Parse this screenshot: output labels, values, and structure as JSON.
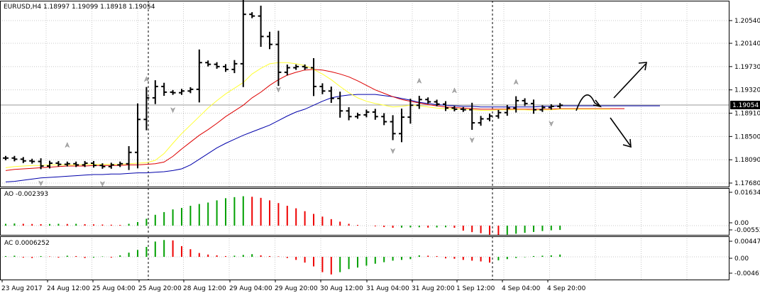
{
  "colors": {
    "background": "#ffffff",
    "grid": "#c8c8c8",
    "ma_fast": "#ffff33",
    "ma_mid": "#dd0000",
    "ma_slow": "#0000aa",
    "price_line": "#9a9a9a",
    "ao_up": "#00a000",
    "ao_down": "#ee0000"
  },
  "chart_data": [
    {
      "type": "line",
      "subtype": "ohlc-bars",
      "title": "EURUSD,H4  1.18997 1.19099 1.18918 1.19054",
      "current_price_label": "1.19054",
      "ylim": [
        1.1768,
        1.2089
      ],
      "y_ticks": [
        "1.20540",
        "1.20140",
        "1.19730",
        "1.19320",
        "1.18910",
        "1.18500",
        "1.18090",
        "1.17680"
      ],
      "x_ticks": [
        "23 Aug 2017",
        "24 Aug 12:00",
        "25 Aug 04:00",
        "25 Aug 20:00",
        "28 Aug 12:00",
        "29 Aug 04:00",
        "29 Aug 20:00",
        "30 Aug 12:00",
        "31 Aug 04:00",
        "31 Aug 20:00",
        "1 Sep 12:00",
        "4 Sep 04:00",
        "4 Sep 20:00"
      ],
      "close": [
        1.1812,
        1.181,
        1.1807,
        1.1806,
        1.1798,
        1.1803,
        1.1801,
        1.1802,
        1.18,
        1.1803,
        1.1799,
        1.1797,
        1.18,
        1.1802,
        1.1822,
        1.188,
        1.1918,
        1.1938,
        1.1928,
        1.1927,
        1.193,
        1.1933,
        1.198,
        1.1977,
        1.1973,
        1.1968,
        1.1978,
        1.2065,
        1.2062,
        1.2026,
        1.2012,
        1.1963,
        1.1971,
        1.1973,
        1.1971,
        1.1938,
        1.193,
        1.1917,
        1.1895,
        1.1885,
        1.1888,
        1.1893,
        1.1885,
        1.1876,
        1.1855,
        1.1884,
        1.1905,
        1.1915,
        1.1911,
        1.1907,
        1.19,
        1.1898,
        1.1897,
        1.1874,
        1.1881,
        1.1886,
        1.1892,
        1.19,
        1.1913,
        1.1908,
        1.1897,
        1.1901,
        1.1903,
        1.1905
      ],
      "ma_fast": [
        1.1795,
        1.1797,
        1.1798,
        1.1799,
        1.1799,
        1.18,
        1.18,
        1.18,
        1.18,
        1.1801,
        1.1801,
        1.1801,
        1.1801,
        1.1801,
        1.1802,
        1.1803,
        1.1804,
        1.1808,
        1.182,
        1.1838,
        1.1855,
        1.187,
        1.1885,
        1.19,
        1.1913,
        1.1925,
        1.1935,
        1.1945,
        1.196,
        1.197,
        1.1978,
        1.198,
        1.198,
        1.1978,
        1.1975,
        1.1968,
        1.196,
        1.195,
        1.1938,
        1.1927,
        1.1918,
        1.1912,
        1.1908,
        1.1905,
        1.1902,
        1.1903,
        1.1905,
        1.1904,
        1.1902,
        1.19,
        1.1899,
        1.1898,
        1.1898,
        1.1897,
        1.1896,
        1.1896,
        1.1897,
        1.1897,
        1.1897,
        1.1897,
        1.1896,
        1.1897,
        1.1897,
        1.1898
      ],
      "ma_mid": [
        1.179,
        1.1792,
        1.1793,
        1.1794,
        1.1795,
        1.1796,
        1.1797,
        1.1798,
        1.1798,
        1.1798,
        1.1799,
        1.1799,
        1.1799,
        1.1799,
        1.18,
        1.18,
        1.1801,
        1.1802,
        1.1805,
        1.1815,
        1.1828,
        1.184,
        1.1852,
        1.1862,
        1.1873,
        1.1885,
        1.1895,
        1.1905,
        1.1918,
        1.1928,
        1.194,
        1.195,
        1.1958,
        1.1963,
        1.1967,
        1.1968,
        1.1967,
        1.1964,
        1.196,
        1.1955,
        1.1948,
        1.194,
        1.1932,
        1.1926,
        1.192,
        1.1915,
        1.1912,
        1.1909,
        1.1906,
        1.1904,
        1.1902,
        1.1901,
        1.19,
        1.1899,
        1.1898,
        1.1898,
        1.1898,
        1.1898,
        1.1898,
        1.1898,
        1.1898,
        1.1898,
        1.1898,
        1.1899
      ],
      "ma_slow": [
        1.177,
        1.1771,
        1.1773,
        1.1775,
        1.1777,
        1.1778,
        1.1779,
        1.178,
        1.1781,
        1.1782,
        1.1783,
        1.1783,
        1.1784,
        1.1784,
        1.1785,
        1.1786,
        1.1786,
        1.1787,
        1.1788,
        1.179,
        1.1793,
        1.18,
        1.181,
        1.182,
        1.183,
        1.1838,
        1.1845,
        1.1852,
        1.1858,
        1.1864,
        1.187,
        1.1878,
        1.1886,
        1.1893,
        1.1898,
        1.1905,
        1.1912,
        1.1918,
        1.1921,
        1.1923,
        1.1924,
        1.1924,
        1.1924,
        1.1922,
        1.192,
        1.1917,
        1.1914,
        1.191,
        1.1908,
        1.1906,
        1.1905,
        1.1904,
        1.1903,
        1.1903,
        1.1902,
        1.1902,
        1.1902,
        1.1902,
        1.1902,
        1.1902,
        1.1902,
        1.1903,
        1.1903,
        1.1904
      ]
    },
    {
      "type": "bar",
      "title": "AO -0.002393",
      "y_ticks": [
        "0.016345",
        "0.00",
        "-0.005526"
      ],
      "ylim": [
        -0.0068,
        0.0168
      ],
      "values": [
        0.001,
        0.0012,
        0.001,
        0.0009,
        0.0008,
        0.0009,
        0.001,
        0.0009,
        0.001,
        0.0008,
        0.0007,
        0.0006,
        0.0005,
        0.0004,
        0.001,
        0.002,
        0.0038,
        0.006,
        0.0075,
        0.009,
        0.0098,
        0.011,
        0.012,
        0.0128,
        0.014,
        0.0152,
        0.0158,
        0.0163,
        0.016,
        0.0154,
        0.014,
        0.0125,
        0.011,
        0.0096,
        0.008,
        0.0065,
        0.005,
        0.0036,
        0.0022,
        0.001,
        0.0004,
        0.0,
        -0.0004,
        -0.0008,
        -0.0012,
        -0.0011,
        -0.001,
        -0.0009,
        -0.0011,
        -0.001,
        -0.0009,
        -0.0012,
        -0.0028,
        -0.0036,
        -0.0042,
        -0.005,
        -0.0054,
        -0.005,
        -0.0045,
        -0.004,
        -0.0035,
        -0.003,
        -0.0026,
        -0.0024
      ]
    },
    {
      "type": "bar",
      "title": "AC 0.0006252",
      "y_ticks": [
        "0.004471",
        "0.00",
        "-0.004611"
      ],
      "ylim": [
        -0.0052,
        0.005
      ],
      "values": [
        0.0002,
        0.0003,
        -0.0002,
        -0.0003,
        0.0002,
        0.0001,
        -0.0002,
        0.0003,
        0.0002,
        -0.0003,
        -0.0002,
        0.0001,
        -0.0002,
        0.0004,
        0.0011,
        0.0018,
        0.0026,
        0.004,
        0.0044,
        0.0043,
        0.0028,
        0.002,
        0.001,
        0.0006,
        0.0004,
        0.0002,
        0.0003,
        0.0005,
        0.0007,
        0.0004,
        0.0002,
        0.0001,
        -0.0003,
        -0.0008,
        -0.0015,
        -0.0025,
        -0.004,
        -0.0046,
        -0.004,
        -0.0032,
        -0.0028,
        -0.0023,
        -0.0018,
        -0.0014,
        -0.001,
        -0.0008,
        -0.0006,
        0.0004,
        0.0003,
        0.0002,
        -0.0004,
        -0.0005,
        -0.0008,
        -0.001,
        -0.0012,
        -0.0015,
        -0.0009,
        -0.0006,
        -0.0003,
        -0.0001,
        0.0002,
        0.0003,
        0.0004,
        0.0006
      ]
    }
  ]
}
